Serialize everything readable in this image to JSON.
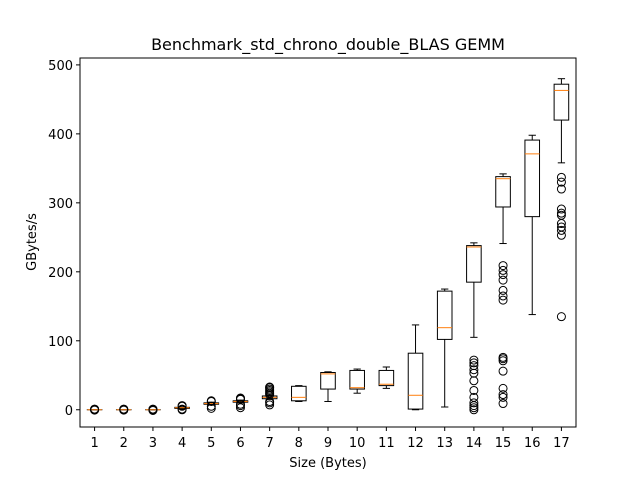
{
  "chart_data": {
    "type": "boxplot",
    "title": "Benchmark_std_chrono_double_BLAS GEMM",
    "xlabel": "Size (Bytes)",
    "ylabel": "GBytes/s",
    "ylim": [
      -25,
      510
    ],
    "yticks": [
      0,
      100,
      200,
      300,
      400,
      500
    ],
    "grid": false,
    "colors": {
      "box": "#000000",
      "median": "#ff7f0e",
      "flier": "#000000"
    },
    "categories": [
      "1",
      "2",
      "3",
      "4",
      "5",
      "6",
      "7",
      "8",
      "9",
      "10",
      "11",
      "12",
      "13",
      "14",
      "15",
      "16",
      "17"
    ],
    "boxes": [
      {
        "whislo": 0,
        "q1": 0,
        "med": 0,
        "q3": 0,
        "whishi": 0,
        "fliers": [
          -0.5,
          0,
          0.5,
          1
        ]
      },
      {
        "whislo": 0,
        "q1": 0,
        "med": 0,
        "q3": 0,
        "whishi": 0,
        "fliers": [
          -0.5,
          0,
          0.5,
          1
        ]
      },
      {
        "whislo": 0,
        "q1": 0,
        "med": 0,
        "q3": 0,
        "whishi": 0,
        "fliers": [
          -1,
          0,
          1
        ]
      },
      {
        "whislo": 1,
        "q1": 2,
        "med": 3,
        "q3": 3.5,
        "whishi": 4,
        "fliers": [
          0,
          1,
          5,
          6
        ]
      },
      {
        "whislo": 7,
        "q1": 8,
        "med": 9,
        "q3": 10,
        "whishi": 11,
        "fliers": [
          2,
          5,
          12,
          13
        ]
      },
      {
        "whislo": 10,
        "q1": 11,
        "med": 12,
        "q3": 13,
        "whishi": 14,
        "fliers": [
          3,
          6,
          8,
          15,
          16,
          17
        ]
      },
      {
        "whislo": 15,
        "q1": 16,
        "med": 18,
        "q3": 20,
        "whishi": 21,
        "fliers": [
          7,
          10,
          12,
          22,
          24,
          26,
          28,
          30,
          32,
          33
        ]
      },
      {
        "whislo": 12,
        "q1": 13,
        "med": 18,
        "q3": 34,
        "whishi": 35,
        "fliers": []
      },
      {
        "whislo": 12,
        "q1": 30,
        "med": 52,
        "q3": 54,
        "whishi": 55,
        "fliers": []
      },
      {
        "whislo": 24,
        "q1": 30,
        "med": 32,
        "q3": 57,
        "whishi": 59,
        "fliers": []
      },
      {
        "whislo": 31,
        "q1": 35,
        "med": 37,
        "q3": 57,
        "whishi": 62,
        "fliers": []
      },
      {
        "whislo": 0,
        "q1": 1,
        "med": 21,
        "q3": 82,
        "whishi": 123,
        "fliers": []
      },
      {
        "whislo": 4,
        "q1": 102,
        "med": 119,
        "q3": 172,
        "whishi": 175,
        "fliers": []
      },
      {
        "whislo": 105,
        "q1": 185,
        "med": 236,
        "q3": 238,
        "whishi": 242,
        "fliers": [
          0,
          3,
          6,
          10,
          18,
          28,
          42,
          53,
          58,
          64,
          68,
          72
        ]
      },
      {
        "whislo": 241,
        "q1": 294,
        "med": 335,
        "q3": 338,
        "whishi": 342,
        "fliers": [
          9,
          18,
          22,
          31,
          56,
          71,
          74,
          76,
          159,
          165,
          173,
          188,
          196,
          202,
          209
        ]
      },
      {
        "whislo": 138,
        "q1": 280,
        "med": 371,
        "q3": 391,
        "whishi": 398,
        "fliers": []
      },
      {
        "whislo": 358,
        "q1": 420,
        "med": 463,
        "q3": 472,
        "whishi": 480,
        "fliers": [
          135,
          253,
          260,
          265,
          270,
          282,
          285,
          291,
          320,
          330,
          337
        ]
      }
    ]
  }
}
